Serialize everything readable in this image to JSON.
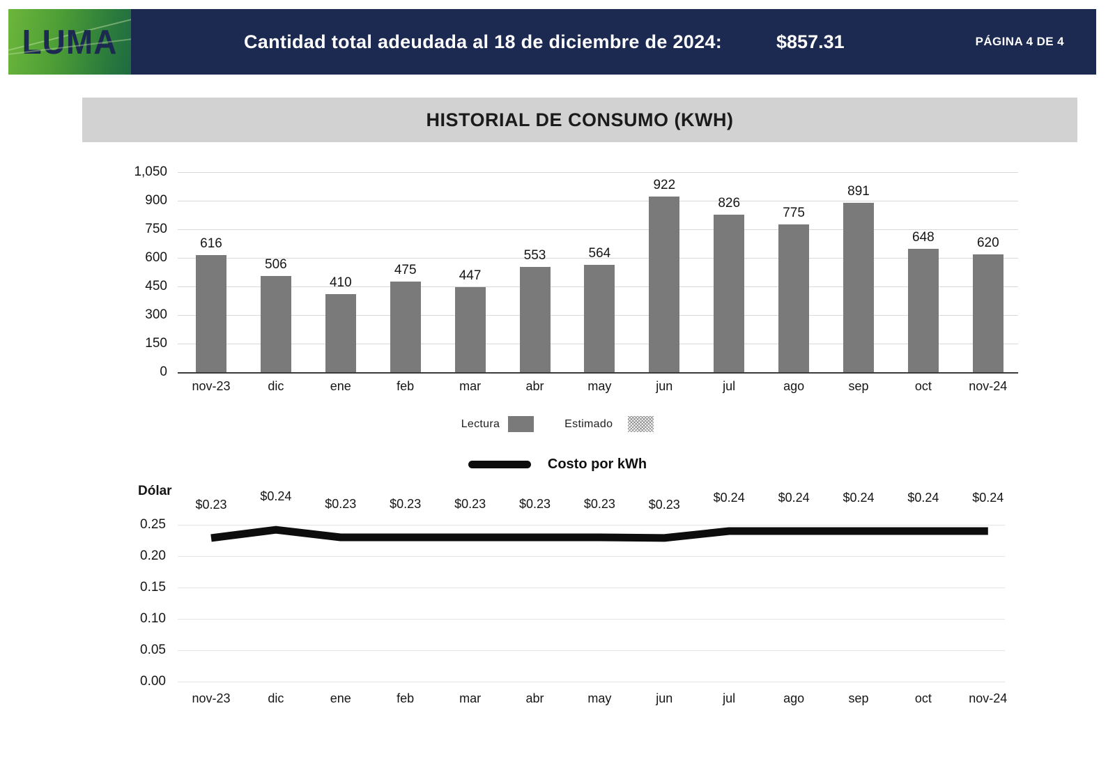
{
  "header": {
    "logo_text": "LUMA",
    "total_due_label": "Cantidad total adeudada al 18 de diciembre de 2024:",
    "total_due_amount": "$857.31",
    "page_indicator": "PÁGINA 4 DE 4"
  },
  "colors": {
    "navy": "#1c2951",
    "logo_green_light": "#6db63c",
    "logo_green_dark": "#1e6a42",
    "banner_gray": "#d2d2d2",
    "bar_gray": "#7a7a7a",
    "line_black": "#0d0d0d",
    "grid_gray": "#d8d8d8"
  },
  "chart_data": [
    {
      "type": "bar",
      "title": "HISTORIAL DE CONSUMO (KWH)",
      "unit": "kWh",
      "categories": [
        "nov-23",
        "dic",
        "ene",
        "feb",
        "mar",
        "abr",
        "may",
        "jun",
        "jul",
        "ago",
        "sep",
        "oct",
        "nov-24"
      ],
      "values": [
        616,
        506,
        410,
        475,
        447,
        553,
        564,
        922,
        826,
        775,
        891,
        648,
        620
      ],
      "data_labels": [
        "616",
        "506",
        "410",
        "475",
        "447",
        "553",
        "564",
        "922",
        "826",
        "775",
        "891",
        "648",
        "620"
      ],
      "ylim": [
        0,
        1050
      ],
      "tick_values": [
        0,
        150,
        300,
        450,
        600,
        750,
        900,
        1050
      ],
      "tick_labels": [
        "0",
        "150",
        "300",
        "450",
        "600",
        "750",
        "900",
        "1,050"
      ],
      "grid": true,
      "legend_position": "bottom-center",
      "legend": [
        {
          "label": "Lectura",
          "style": "solid"
        },
        {
          "label": "Estimado",
          "style": "hatched"
        }
      ],
      "bar_color": "#7a7a7a"
    },
    {
      "type": "line",
      "title": "Costo por kWh",
      "y_axis_title": "Dólar",
      "categories": [
        "nov-23",
        "dic",
        "ene",
        "feb",
        "mar",
        "abr",
        "may",
        "jun",
        "jul",
        "ago",
        "sep",
        "oct",
        "nov-24"
      ],
      "values": [
        0.229,
        0.242,
        0.23,
        0.23,
        0.23,
        0.23,
        0.23,
        0.229,
        0.24,
        0.24,
        0.24,
        0.24,
        0.24
      ],
      "point_labels": [
        "$0.23",
        "$0.24",
        "$0.23",
        "$0.23",
        "$0.23",
        "$0.23",
        "$0.23",
        "$0.23",
        "$0.24",
        "$0.24",
        "$0.24",
        "$0.24",
        "$0.24"
      ],
      "ylim": [
        0,
        0.25
      ],
      "tick_values": [
        0,
        0.05,
        0.1,
        0.15,
        0.2,
        0.25
      ],
      "tick_labels": [
        "0.00",
        "0.05",
        "0.10",
        "0.15",
        "0.20",
        "0.25"
      ],
      "grid": true,
      "legend_position": "top-center",
      "line_color": "#0d0d0d"
    }
  ]
}
